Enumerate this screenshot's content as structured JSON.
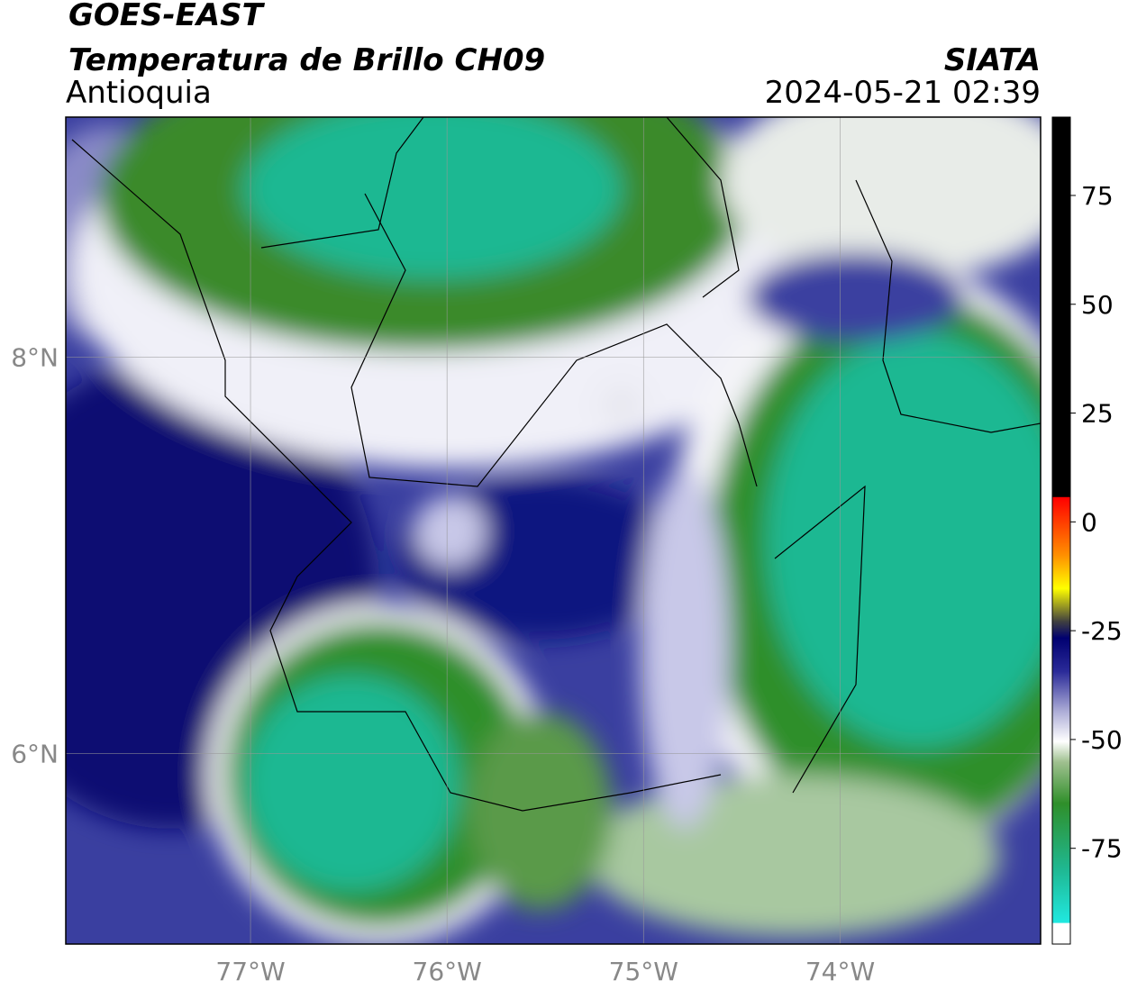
{
  "header": {
    "title": "GOES-EAST",
    "subtitle": "Temperatura de Brillo CH09",
    "region": "Antioquia",
    "source": "SIATA",
    "datetime": "2024-05-21 02:39"
  },
  "map": {
    "xlim": [
      -77.94,
      -72.98
    ],
    "ylim": [
      5.04,
      9.21
    ],
    "grid": true,
    "xticks": [
      {
        "value": -77,
        "label": "77°W"
      },
      {
        "value": -76,
        "label": "76°W"
      },
      {
        "value": -75,
        "label": "75°W"
      },
      {
        "value": -74,
        "label": "74°W"
      }
    ],
    "yticks": [
      {
        "value": 8,
        "label": "8°N"
      },
      {
        "value": 6,
        "label": "6°N"
      }
    ]
  },
  "colorbar": {
    "lim": [
      -97,
      93
    ],
    "ticks": [
      75,
      50,
      25,
      0,
      -25,
      -50,
      -75
    ]
  }
}
